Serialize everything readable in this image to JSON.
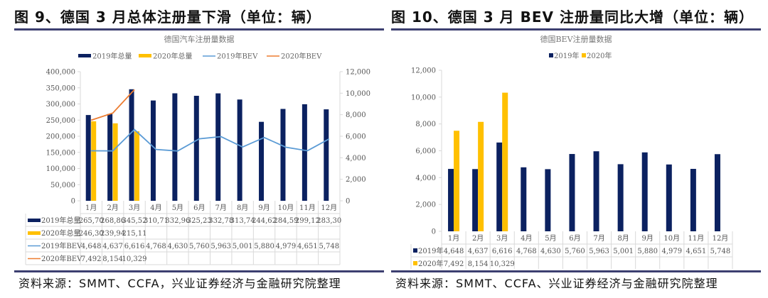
{
  "left_panel": {
    "figure_title": "图 9、德国 3 月总体注册量下滑（单位：辆）",
    "source": "资料来源：SMMT、CCFA，兴业证券经济与金融研究院整理"
  },
  "right_panel": {
    "figure_title": "图 10、德国 3 月 BEV 注册量同比大增（单位：辆）",
    "source": "资料来源：SMMT、CCFA、兴业证券经济与金融研究院整理"
  },
  "colors": {
    "navy": "#0b2160",
    "gold": "#ffc000",
    "blue_line": "#5b9bd5",
    "orange_line": "#ed7d31"
  },
  "chart_data": [
    {
      "type": "bar",
      "title": "德国汽车注册量数据",
      "categories": [
        "1月",
        "2月",
        "3月",
        "4月",
        "5月",
        "6月",
        "7月",
        "8月",
        "9月",
        "10月",
        "11月",
        "12月"
      ],
      "legend_position": "top",
      "left_axis": {
        "ylim": [
          0,
          400000
        ],
        "ticks": [
          "0",
          "50,000",
          "100,000",
          "150,000",
          "200,000",
          "250,000",
          "300,000",
          "350,000",
          "400,000"
        ]
      },
      "right_axis": {
        "ylim": [
          0,
          12000
        ],
        "ticks": [
          "0",
          "2,000",
          "4,000",
          "6,000",
          "8,000",
          "10,000",
          "12,000"
        ]
      },
      "series": [
        {
          "name": "2019年总量",
          "kind": "bar",
          "axis": "left",
          "color": "#0b2160",
          "values": [
            265700,
            268860,
            345520,
            310710,
            332960,
            325230,
            332780,
            313740,
            244620,
            284590,
            299120,
            283300
          ],
          "labels": [
            "265,70",
            "268,86",
            "345,52",
            "310,71",
            "332,96",
            "325,23",
            "332,78",
            "313,74",
            "244,62",
            "284,59",
            "299,12",
            "283,30"
          ]
        },
        {
          "name": "2020年总量",
          "kind": "bar",
          "axis": "left",
          "color": "#ffc000",
          "values": [
            246300,
            239940,
            215110,
            null,
            null,
            null,
            null,
            null,
            null,
            null,
            null,
            null
          ],
          "labels": [
            "246,30",
            "239,94",
            "215,11",
            "",
            "",
            "",
            "",
            "",
            "",
            "",
            "",
            ""
          ]
        },
        {
          "name": "2019年BEV",
          "kind": "line",
          "axis": "right",
          "color": "#5b9bd5",
          "values": [
            4648,
            4637,
            6616,
            4768,
            4630,
            5760,
            5963,
            5001,
            5880,
            4979,
            4651,
            5748
          ],
          "labels": [
            "4,648",
            "4,637",
            "6,616",
            "4,768",
            "4,630",
            "5,760",
            "5,963",
            "5,001",
            "5,880",
            "4,979",
            "4,651",
            "5,748"
          ]
        },
        {
          "name": "2020年BEV",
          "kind": "line",
          "axis": "right",
          "color": "#ed7d31",
          "values": [
            7492,
            8154,
            10329,
            null,
            null,
            null,
            null,
            null,
            null,
            null,
            null,
            null
          ],
          "labels": [
            "7,492",
            "8,154",
            "10,329",
            "",
            "",
            "",
            "",
            "",
            "",
            "",
            "",
            ""
          ]
        }
      ]
    },
    {
      "type": "bar",
      "title": "德国BEV注册量数据",
      "categories": [
        "1月",
        "2月",
        "3月",
        "4月",
        "5月",
        "6月",
        "7月",
        "8月",
        "9月",
        "10月",
        "11月",
        "12月"
      ],
      "legend_position": "top",
      "ylim": [
        0,
        12000
      ],
      "yticks": [
        "0",
        "2,000",
        "4,000",
        "6,000",
        "8,000",
        "10,000",
        "12,000"
      ],
      "series": [
        {
          "name": "2019年",
          "color": "#0b2160",
          "values": [
            4648,
            4637,
            6616,
            4768,
            4630,
            5760,
            5963,
            5001,
            5880,
            4979,
            4651,
            5748
          ],
          "labels": [
            "4,648",
            "4,637",
            "6,616",
            "4,768",
            "4,630",
            "5,760",
            "5,963",
            "5,001",
            "5,880",
            "4,979",
            "4,651",
            "5,748"
          ]
        },
        {
          "name": "2020年",
          "color": "#ffc000",
          "values": [
            7492,
            8154,
            10329,
            null,
            null,
            null,
            null,
            null,
            null,
            null,
            null,
            null
          ],
          "labels": [
            "7,492",
            "8,154",
            "10,329",
            "",
            "",
            "",
            "",
            "",
            "",
            "",
            "",
            ""
          ]
        }
      ]
    }
  ]
}
